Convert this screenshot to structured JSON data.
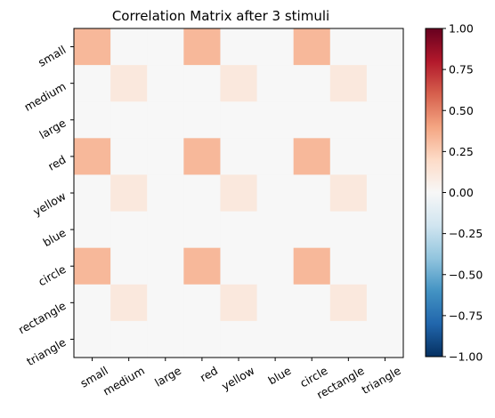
{
  "chart_data": {
    "type": "heatmap",
    "title": "Correlation Matrix after 3 stimuli",
    "x_labels": [
      "small",
      "medium",
      "large",
      "red",
      "yellow",
      "blue",
      "circle",
      "rectangle",
      "triangle"
    ],
    "y_labels": [
      "small",
      "medium",
      "large",
      "red",
      "yellow",
      "blue",
      "circle",
      "rectangle",
      "triangle"
    ],
    "values": [
      [
        0.33,
        0,
        0,
        0.33,
        0,
        0,
        0.33,
        0,
        0
      ],
      [
        0,
        0.11,
        0,
        0,
        0.11,
        0,
        0,
        0.11,
        0
      ],
      [
        0,
        0,
        0,
        0,
        0,
        0,
        0,
        0,
        0
      ],
      [
        0.33,
        0,
        0,
        0.33,
        0,
        0,
        0.33,
        0,
        0
      ],
      [
        0,
        0.11,
        0,
        0,
        0.11,
        0,
        0,
        0.11,
        0
      ],
      [
        0,
        0,
        0,
        0,
        0,
        0,
        0,
        0,
        0
      ],
      [
        0.33,
        0,
        0,
        0.33,
        0,
        0,
        0.33,
        0,
        0
      ],
      [
        0,
        0.11,
        0,
        0,
        0.11,
        0,
        0,
        0.11,
        0
      ],
      [
        0,
        0,
        0,
        0,
        0,
        0,
        0,
        0,
        0
      ]
    ],
    "colormap": "RdBu_r",
    "vmin": -1.0,
    "vmax": 1.0,
    "colorbar_ticks": [
      "1.00",
      "0.75",
      "0.50",
      "0.25",
      "0.00",
      "−0.25",
      "−0.50",
      "−0.75",
      "−1.00"
    ],
    "colorbar_tick_values": [
      1.0,
      0.75,
      0.5,
      0.25,
      0.0,
      -0.25,
      -0.5,
      -0.75,
      -1.0
    ],
    "grid": false
  }
}
